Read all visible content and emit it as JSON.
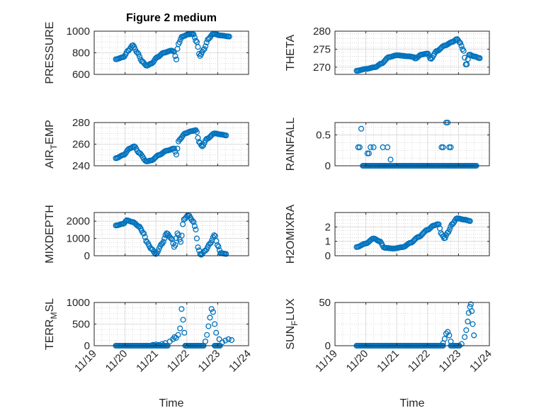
{
  "figure_title": "Figure 2 medium",
  "x_axis": {
    "label": "Time",
    "ticks": [
      {
        "t": 0,
        "label": "11/19"
      },
      {
        "t": 1,
        "label": "11/20"
      },
      {
        "t": 2,
        "label": "11/21"
      },
      {
        "t": 3,
        "label": "11/22"
      },
      {
        "t": 4,
        "label": "11/23"
      },
      {
        "t": 5,
        "label": "11/24"
      }
    ]
  },
  "colors": {
    "marker": "#0072BD",
    "axis": "#262626",
    "grid": "#dcdcdc"
  },
  "chart_data": [
    {
      "type": "scatter",
      "id": "pressure",
      "ylabel": "PRESSURE",
      "ylim": [
        600,
        1000
      ],
      "yticks": [
        600,
        800,
        1000
      ],
      "xlim": [
        0,
        5
      ],
      "grid": true,
      "control": [
        [
          0.7,
          740
        ],
        [
          0.95,
          760
        ],
        [
          1.1,
          820
        ],
        [
          1.25,
          870
        ],
        [
          1.4,
          800
        ],
        [
          1.55,
          720
        ],
        [
          1.7,
          680
        ],
        [
          1.85,
          700
        ],
        [
          2.05,
          760
        ],
        [
          2.25,
          800
        ],
        [
          2.5,
          820
        ],
        [
          2.6,
          810
        ],
        [
          2.65,
          730
        ],
        [
          2.72,
          880
        ],
        [
          2.85,
          950
        ],
        [
          3.05,
          970
        ],
        [
          3.2,
          975
        ],
        [
          3.32,
          900
        ],
        [
          3.42,
          770
        ],
        [
          3.55,
          830
        ],
        [
          3.7,
          930
        ],
        [
          3.85,
          975
        ],
        [
          4.1,
          960
        ],
        [
          4.4,
          950
        ]
      ]
    },
    {
      "type": "scatter",
      "id": "theta",
      "ylabel": "THETA",
      "ylim": [
        268,
        280
      ],
      "yticks": [
        270,
        275,
        280
      ],
      "xlim": [
        0,
        5
      ],
      "grid": true,
      "control": [
        [
          0.7,
          269
        ],
        [
          1.0,
          269.5
        ],
        [
          1.3,
          270
        ],
        [
          1.5,
          271
        ],
        [
          1.75,
          272.8
        ],
        [
          2.0,
          273.3
        ],
        [
          2.4,
          273
        ],
        [
          2.55,
          272.8
        ],
        [
          2.6,
          272.4
        ],
        [
          2.8,
          273.5
        ],
        [
          3.0,
          273.8
        ],
        [
          3.1,
          272.3
        ],
        [
          3.3,
          274.5
        ],
        [
          3.55,
          276
        ],
        [
          3.8,
          277
        ],
        [
          3.95,
          277.8
        ],
        [
          4.05,
          276.8
        ],
        [
          4.15,
          274.8
        ],
        [
          4.25,
          270.5
        ],
        [
          4.35,
          273.5
        ],
        [
          4.5,
          273
        ],
        [
          4.7,
          272.5
        ]
      ]
    },
    {
      "type": "scatter",
      "id": "air_temp",
      "ylabel": "AIR_TEMP",
      "ylim": [
        240,
        280
      ],
      "yticks": [
        240,
        260,
        280
      ],
      "xlim": [
        0,
        5
      ],
      "grid": true,
      "control": [
        [
          0.7,
          247
        ],
        [
          0.95,
          250
        ],
        [
          1.15,
          256
        ],
        [
          1.3,
          258
        ],
        [
          1.45,
          252
        ],
        [
          1.7,
          244
        ],
        [
          1.85,
          245
        ],
        [
          2.1,
          250
        ],
        [
          2.35,
          254
        ],
        [
          2.6,
          256
        ],
        [
          2.65,
          250
        ],
        [
          2.75,
          264
        ],
        [
          2.95,
          270
        ],
        [
          3.15,
          272
        ],
        [
          3.3,
          273
        ],
        [
          3.4,
          262
        ],
        [
          3.5,
          258
        ],
        [
          3.65,
          265
        ],
        [
          3.9,
          270
        ],
        [
          4.1,
          269
        ],
        [
          4.3,
          268
        ]
      ]
    },
    {
      "type": "scatter",
      "id": "rainfall",
      "ylabel": "RAINFALL",
      "ylim": [
        0,
        0.7
      ],
      "yticks": [
        0,
        0.5
      ],
      "xlim": [
        0,
        5
      ],
      "grid": true,
      "baseline_ranges": [
        [
          0.9,
          4.6
        ]
      ],
      "points": [
        [
          0.75,
          0.3
        ],
        [
          0.8,
          0.3
        ],
        [
          0.85,
          0.6
        ],
        [
          1.05,
          0.2
        ],
        [
          1.1,
          0.2
        ],
        [
          1.15,
          0.3
        ],
        [
          1.25,
          0.3
        ],
        [
          1.55,
          0.3
        ],
        [
          1.7,
          0.3
        ],
        [
          1.8,
          0.1
        ],
        [
          3.45,
          0.3
        ],
        [
          3.5,
          0.3
        ],
        [
          3.6,
          0.7
        ],
        [
          3.65,
          0.7
        ],
        [
          3.7,
          0.3
        ],
        [
          3.75,
          0.3
        ]
      ]
    },
    {
      "type": "scatter",
      "id": "mixdepth",
      "ylabel": "MIXDEPTH",
      "ylim": [
        0,
        2500
      ],
      "yticks": [
        0,
        1000,
        2000
      ],
      "xlim": [
        0,
        5
      ],
      "grid": true,
      "control": [
        [
          0.7,
          1750
        ],
        [
          0.95,
          1850
        ],
        [
          1.05,
          2050
        ],
        [
          1.25,
          1950
        ],
        [
          1.45,
          1700
        ],
        [
          1.6,
          1300
        ],
        [
          1.7,
          800
        ],
        [
          1.85,
          400
        ],
        [
          2.0,
          100
        ],
        [
          2.2,
          700
        ],
        [
          2.35,
          1300
        ],
        [
          2.5,
          1000
        ],
        [
          2.6,
          500
        ],
        [
          2.7,
          1300
        ],
        [
          2.8,
          800
        ],
        [
          2.9,
          2100
        ],
        [
          3.05,
          2350
        ],
        [
          3.2,
          2000
        ],
        [
          3.3,
          1500
        ],
        [
          3.35,
          500
        ],
        [
          3.45,
          50
        ],
        [
          3.6,
          300
        ],
        [
          3.75,
          700
        ],
        [
          3.9,
          1200
        ],
        [
          4.0,
          600
        ],
        [
          4.1,
          150
        ],
        [
          4.3,
          100
        ]
      ]
    },
    {
      "type": "scatter",
      "id": "h2omixra",
      "ylabel": "H2OMIXRA",
      "ylim": [
        0,
        3
      ],
      "yticks": [
        0,
        1,
        2
      ],
      "xlim": [
        0,
        5
      ],
      "grid": true,
      "control": [
        [
          0.7,
          0.6
        ],
        [
          1.0,
          0.85
        ],
        [
          1.25,
          1.2
        ],
        [
          1.45,
          1.0
        ],
        [
          1.6,
          0.55
        ],
        [
          1.9,
          0.5
        ],
        [
          2.2,
          0.6
        ],
        [
          2.45,
          0.9
        ],
        [
          2.7,
          1.3
        ],
        [
          3.0,
          1.8
        ],
        [
          3.2,
          2.1
        ],
        [
          3.35,
          2.2
        ],
        [
          3.45,
          1.5
        ],
        [
          3.55,
          1.2
        ],
        [
          3.65,
          1.6
        ],
        [
          3.8,
          2.2
        ],
        [
          3.95,
          2.6
        ],
        [
          4.2,
          2.5
        ],
        [
          4.4,
          2.4
        ]
      ]
    },
    {
      "type": "scatter",
      "id": "terr_msl",
      "ylabel": "TERR_MSL",
      "ylim": [
        0,
        1000
      ],
      "yticks": [
        0,
        500,
        1000
      ],
      "xlim": [
        0,
        5
      ],
      "grid": true,
      "baseline_ranges": [
        [
          0.7,
          2.4
        ],
        [
          2.95,
          3.55
        ],
        [
          3.9,
          4.1
        ]
      ],
      "points": [
        [
          1.9,
          20
        ],
        [
          2.0,
          30
        ],
        [
          2.1,
          20
        ],
        [
          2.2,
          40
        ],
        [
          2.3,
          60
        ],
        [
          2.45,
          100
        ],
        [
          2.55,
          150
        ],
        [
          2.6,
          200
        ],
        [
          2.65,
          180
        ],
        [
          2.72,
          250
        ],
        [
          2.78,
          400
        ],
        [
          2.83,
          850
        ],
        [
          2.88,
          600
        ],
        [
          2.92,
          300
        ],
        [
          3.6,
          100
        ],
        [
          3.65,
          250
        ],
        [
          3.7,
          450
        ],
        [
          3.75,
          650
        ],
        [
          3.8,
          850
        ],
        [
          3.85,
          780
        ],
        [
          3.9,
          500
        ],
        [
          3.95,
          300
        ],
        [
          4.05,
          150
        ],
        [
          4.15,
          80
        ],
        [
          4.25,
          120
        ],
        [
          4.35,
          150
        ],
        [
          4.45,
          130
        ]
      ]
    },
    {
      "type": "scatter",
      "id": "sun_flux",
      "ylabel": "SUN_FLUX",
      "ylim": [
        0,
        50
      ],
      "yticks": [
        0,
        50
      ],
      "xlim": [
        0,
        5
      ],
      "grid": true,
      "baseline_ranges": [
        [
          0.7,
          3.5
        ],
        [
          3.75,
          4.05
        ]
      ],
      "points": [
        [
          3.5,
          3
        ],
        [
          3.55,
          8
        ],
        [
          3.6,
          14
        ],
        [
          3.65,
          16
        ],
        [
          3.7,
          12
        ],
        [
          3.75,
          5
        ],
        [
          4.1,
          2
        ],
        [
          4.2,
          10
        ],
        [
          4.25,
          18
        ],
        [
          4.3,
          28
        ],
        [
          4.33,
          38
        ],
        [
          4.37,
          45
        ],
        [
          4.4,
          48
        ],
        [
          4.43,
          40
        ],
        [
          4.46,
          25
        ],
        [
          4.5,
          12
        ]
      ]
    }
  ]
}
